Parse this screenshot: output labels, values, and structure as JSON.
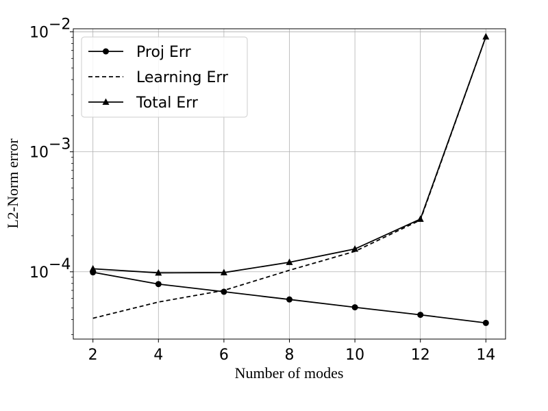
{
  "chart_data": {
    "type": "line",
    "xlabel": "Number of modes",
    "ylabel": "L2-Norm error",
    "y_scale": "log",
    "xlim": [
      1.4,
      14.6
    ],
    "ylim": [
      2.75e-05,
      0.0106
    ],
    "x_ticks": [
      2,
      4,
      6,
      8,
      10,
      12,
      14
    ],
    "x_tick_labels": [
      "2",
      "4",
      "6",
      "8",
      "10",
      "12",
      "14"
    ],
    "y_ticks": [
      {
        "value": 0.0001,
        "base": "10",
        "exp": "−4"
      },
      {
        "value": 0.001,
        "base": "10",
        "exp": "−3"
      },
      {
        "value": 0.01,
        "base": "10",
        "exp": "−2"
      }
    ],
    "grid": true,
    "legend_placement": "top-left",
    "x": [
      2,
      4,
      6,
      8,
      10,
      12,
      14
    ],
    "series": [
      {
        "name": "Proj Err",
        "marker": "circle",
        "line": "solid",
        "color": "#000000",
        "values": [
          9.9e-05,
          7.9e-05,
          6.82e-05,
          5.88e-05,
          5.06e-05,
          4.38e-05,
          3.75e-05
        ]
      },
      {
        "name": "Learning Err",
        "marker": "none",
        "line": "dashed",
        "color": "#000000",
        "values": [
          4.1e-05,
          5.6e-05,
          7e-05,
          0.000103,
          0.000148,
          0.00027,
          0.0091
        ]
      },
      {
        "name": "Total Err",
        "marker": "triangle",
        "line": "solid",
        "color": "#000000",
        "values": [
          0.000106,
          9.8e-05,
          9.85e-05,
          0.00012,
          0.000155,
          0.000275,
          0.0091
        ]
      }
    ]
  }
}
